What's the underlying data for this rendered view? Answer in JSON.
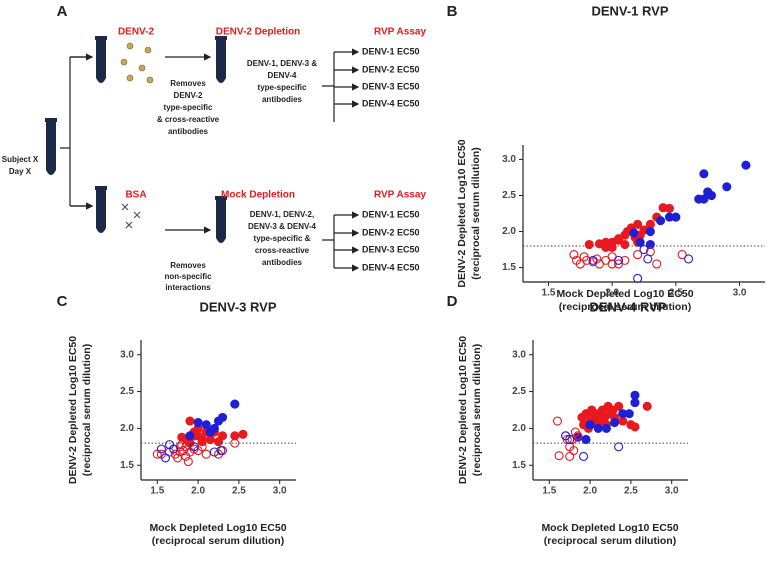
{
  "diagram": {
    "panel": "A",
    "subject": [
      "Subject X",
      "Day X"
    ],
    "top": {
      "reagent": "DENV-2",
      "removes": [
        "Removes",
        "DENV-2",
        "type-specific",
        "& cross-reactive",
        "antibodies"
      ],
      "step": "DENV-2 Depletion",
      "remaining": [
        "DENV-1, DENV-3 &",
        "DENV-4",
        "type-specific",
        "antibodies"
      ],
      "assay": "RVP Assay",
      "readouts": [
        "DENV-1 EC50",
        "DENV-2 EC50",
        "DENV-3 EC50",
        "DENV-4 EC50"
      ]
    },
    "bottom": {
      "reagent": "BSA",
      "removes": [
        "Removes",
        "non-specific",
        "interactions"
      ],
      "step": "Mock Depletion",
      "remaining": [
        "DENV-1, DENV-2,",
        "DENV-3 & DENV-4",
        "type-specific &",
        "cross-reactive",
        "antibodies"
      ],
      "assay": "RVP Assay",
      "readouts": [
        "DENV-1 EC50",
        "DENV-2 EC50",
        "DENV-3 EC50",
        "DENV-4 EC50"
      ]
    }
  },
  "chart_data": [
    {
      "type": "scatter",
      "panel": "B",
      "title": "DENV-1 RVP",
      "xlabel": [
        "Mock Depleted Log10 EC50",
        "(reciprocal serum dilution)"
      ],
      "ylabel": [
        "DENV-2 Depleted Log10 EC50",
        "(reciprocal serum dilution)"
      ],
      "xlim": [
        1.3,
        3.2
      ],
      "ylim": [
        1.3,
        3.2
      ],
      "xticks": [
        1.5,
        {
          "value": 2,
          "label": "2.0"
        },
        2.5,
        {
          "value": 3,
          "label": "3.0"
        }
      ],
      "yticks": [
        1.5,
        {
          "value": 2,
          "label": "2.0"
        },
        2.5,
        {
          "value": 3,
          "label": "3.0"
        }
      ],
      "reference_line": 1.8,
      "series": [
        {
          "color": "#e8191f",
          "filled": true,
          "x": [
            1.82,
            1.9,
            1.95,
            2.0,
            2.05,
            2.1,
            2.12,
            2.15,
            2.2,
            2.25,
            2.35,
            2.4,
            2.45,
            2.3,
            2.05,
            2.18,
            2.22,
            2.1,
            2.0,
            1.95,
            2.2
          ],
          "values": [
            1.82,
            1.83,
            1.85,
            1.85,
            1.88,
            1.95,
            2.0,
            2.05,
            2.1,
            2.02,
            2.2,
            2.33,
            2.32,
            2.1,
            1.9,
            1.92,
            1.95,
            1.82,
            1.78,
            1.78,
            1.85
          ]
        },
        {
          "color": "#1f1fd6",
          "filled": true,
          "x": [
            2.72,
            2.75,
            2.78,
            2.72,
            2.68,
            2.9,
            3.05,
            2.5,
            2.45,
            2.38,
            2.3,
            2.3,
            2.17,
            2.22
          ],
          "values": [
            2.8,
            2.55,
            2.5,
            2.45,
            2.45,
            2.62,
            2.92,
            2.2,
            2.2,
            2.15,
            2.0,
            1.82,
            1.98,
            1.85
          ]
        },
        {
          "color": "#e8191f",
          "filled": false,
          "x": [
            1.7,
            1.72,
            1.75,
            1.8,
            1.85,
            1.9,
            1.95,
            2.0,
            2.05,
            2.1,
            2.2,
            2.3,
            2.35,
            2.55,
            1.78,
            1.88,
            2.0
          ],
          "values": [
            1.68,
            1.6,
            1.55,
            1.6,
            1.58,
            1.55,
            1.6,
            1.65,
            1.55,
            1.6,
            1.68,
            1.72,
            1.55,
            1.68,
            1.65,
            1.62,
            1.55
          ]
        },
        {
          "color": "#1f1fd6",
          "filled": false,
          "x": [
            1.85,
            2.05,
            2.2,
            2.25,
            2.6,
            2.28
          ],
          "values": [
            1.6,
            1.6,
            1.35,
            1.75,
            1.62,
            1.62
          ]
        }
      ]
    },
    {
      "type": "scatter",
      "panel": "C",
      "title": "DENV-3 RVP",
      "xlabel": [
        "Mock Depleted Log10 EC50",
        "(reciprocal serum dilution)"
      ],
      "ylabel": [
        "DENV-2 Depleted Log10 EC50",
        "(reciprocal serum dilution)"
      ],
      "xlim": [
        1.3,
        3.2
      ],
      "ylim": [
        1.3,
        3.2
      ],
      "xticks": [
        1.5,
        {
          "value": 2,
          "label": "2.0"
        },
        2.5,
        {
          "value": 3,
          "label": "3.0"
        }
      ],
      "yticks": [
        1.5,
        {
          "value": 2,
          "label": "2.0"
        },
        2.5,
        {
          "value": 3,
          "label": "3.0"
        }
      ],
      "reference_line": 1.8,
      "series": [
        {
          "color": "#e8191f",
          "filled": true,
          "x": [
            1.9,
            1.95,
            2.0,
            2.05,
            1.85,
            1.9,
            2.0,
            2.1,
            2.15,
            2.2,
            2.3,
            2.45,
            2.55,
            1.95,
            2.05,
            2.25,
            1.8
          ],
          "values": [
            2.1,
            1.95,
            1.9,
            1.85,
            1.85,
            1.8,
            2.0,
            1.95,
            1.85,
            1.95,
            1.9,
            1.9,
            1.92,
            1.9,
            1.82,
            1.82,
            1.88
          ]
        },
        {
          "color": "#1f1fd6",
          "filled": true,
          "x": [
            2.45,
            2.3,
            2.25,
            2.1,
            2.0,
            2.2,
            2.15,
            1.9
          ],
          "values": [
            2.33,
            2.15,
            2.1,
            2.05,
            2.08,
            2.0,
            1.95,
            1.9
          ]
        },
        {
          "color": "#e8191f",
          "filled": false,
          "x": [
            1.5,
            1.55,
            1.65,
            1.7,
            1.72,
            1.75,
            1.78,
            1.8,
            1.82,
            1.85,
            1.88,
            1.9,
            1.95,
            2.0,
            2.05,
            2.1,
            2.25,
            2.3,
            2.45,
            1.78,
            1.85
          ],
          "values": [
            1.65,
            1.65,
            1.68,
            1.72,
            1.65,
            1.6,
            1.75,
            1.78,
            1.7,
            1.62,
            1.55,
            1.68,
            1.72,
            1.7,
            1.75,
            1.65,
            1.65,
            1.7,
            1.8,
            1.68,
            1.75
          ]
        },
        {
          "color": "#1f1fd6",
          "filled": false,
          "x": [
            1.6,
            1.65,
            1.7,
            2.2,
            2.28,
            1.95,
            1.55
          ],
          "values": [
            1.6,
            1.78,
            1.72,
            1.68,
            1.7,
            1.75,
            1.72
          ]
        }
      ]
    },
    {
      "type": "scatter",
      "panel": "D",
      "title": "DENV-4 RVP",
      "xlabel": [
        "Mock Depleted Log10 EC50",
        "(reciprocal serum dilution)"
      ],
      "ylabel": [
        "DENV-2 Depleted Log10 EC50",
        "(reciprocal serum dilution)"
      ],
      "xlim": [
        1.3,
        3.2
      ],
      "ylim": [
        1.3,
        3.2
      ],
      "xticks": [
        1.5,
        {
          "value": 2,
          "label": "2.0"
        },
        2.5,
        {
          "value": 3,
          "label": "3.0"
        }
      ],
      "yticks": [
        1.5,
        {
          "value": 2,
          "label": "2.0"
        },
        2.5,
        {
          "value": 3,
          "label": "3.0"
        }
      ],
      "reference_line": 1.8,
      "series": [
        {
          "color": "#e8191f",
          "filled": true,
          "x": [
            1.9,
            1.95,
            2.0,
            2.02,
            2.05,
            2.08,
            2.1,
            2.12,
            2.15,
            2.18,
            2.2,
            2.22,
            2.25,
            2.3,
            2.35,
            2.4,
            2.5,
            2.55,
            2.7,
            1.98,
            2.05,
            2.15,
            2.28,
            1.92
          ],
          "values": [
            2.15,
            2.2,
            2.1,
            2.25,
            2.15,
            2.05,
            2.2,
            2.1,
            2.25,
            2.15,
            2.05,
            2.3,
            2.2,
            2.15,
            2.3,
            2.1,
            2.05,
            2.02,
            2.3,
            2.0,
            2.2,
            2.1,
            2.25,
            2.05
          ]
        },
        {
          "color": "#1f1fd6",
          "filled": true,
          "x": [
            2.55,
            2.55,
            2.48,
            2.4,
            2.3,
            2.2,
            2.1,
            1.95,
            1.85,
            2.0
          ],
          "values": [
            2.45,
            2.35,
            2.2,
            2.2,
            2.08,
            2.0,
            2.0,
            1.85,
            1.88,
            2.05
          ]
        },
        {
          "color": "#e8191f",
          "filled": false,
          "x": [
            1.6,
            1.62,
            1.7,
            1.72,
            1.75,
            1.78,
            1.8,
            1.82,
            1.85,
            1.75
          ],
          "values": [
            2.1,
            1.63,
            1.9,
            1.85,
            1.75,
            1.85,
            1.7,
            1.95,
            1.9,
            1.62
          ]
        },
        {
          "color": "#1f1fd6",
          "filled": false,
          "x": [
            1.7,
            1.92,
            2.35,
            1.75
          ],
          "values": [
            1.9,
            1.62,
            1.75,
            1.85
          ]
        }
      ]
    }
  ]
}
